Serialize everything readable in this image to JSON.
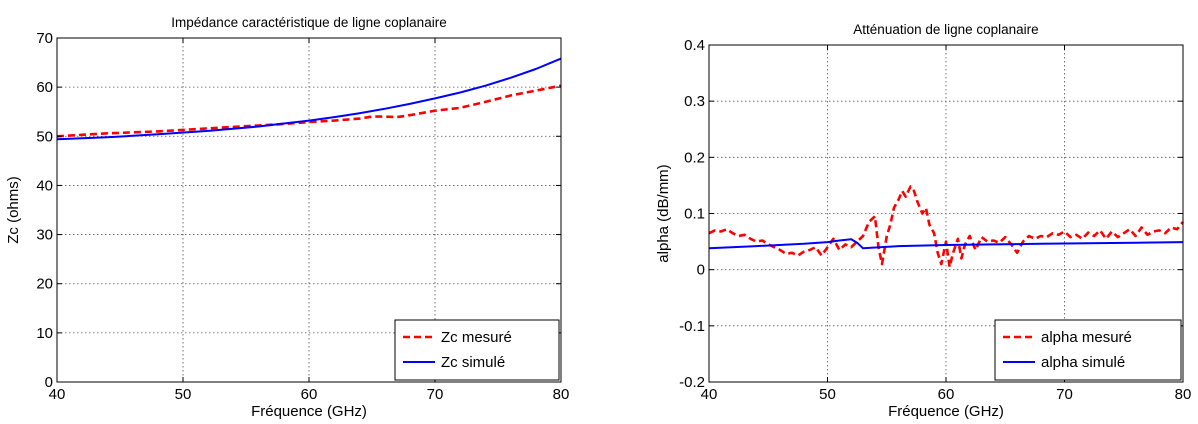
{
  "chart_data": [
    {
      "type": "line",
      "title": "Impédance caractéristique de ligne coplanaire",
      "xlabel": "Fréquence (GHz)",
      "ylabel": "Zc (ohms)",
      "xlim": [
        40,
        80
      ],
      "ylim": [
        0,
        70
      ],
      "xticks": [
        40,
        50,
        60,
        70,
        80
      ],
      "yticks": [
        0,
        10,
        20,
        30,
        40,
        50,
        60,
        70
      ],
      "grid": true,
      "legend_position": "bottom-right",
      "series": [
        {
          "name": "Zc mesuré",
          "color": "#ff0000",
          "style": "dashed",
          "x": [
            40,
            42,
            44,
            46,
            48,
            50,
            52,
            54,
            56,
            58,
            60,
            62,
            64,
            65,
            66,
            67,
            68,
            70,
            72,
            74,
            76,
            78,
            80
          ],
          "y": [
            50.0,
            50.3,
            50.6,
            50.8,
            51.0,
            51.3,
            51.6,
            51.9,
            52.2,
            52.5,
            52.9,
            53.2,
            53.6,
            54.0,
            54.0,
            53.9,
            54.3,
            55.2,
            55.8,
            57.0,
            58.3,
            59.3,
            60.3
          ]
        },
        {
          "name": "Zc simulé",
          "color": "#0000ff",
          "style": "solid",
          "x": [
            40,
            44,
            48,
            52,
            56,
            58,
            60,
            62,
            64,
            66,
            68,
            70,
            72,
            74,
            76,
            78,
            80
          ],
          "y": [
            49.4,
            49.8,
            50.4,
            51.1,
            52.0,
            52.6,
            53.2,
            53.9,
            54.7,
            55.6,
            56.6,
            57.7,
            58.9,
            60.3,
            61.9,
            63.7,
            65.8
          ]
        }
      ]
    },
    {
      "type": "line",
      "title": "Atténuation de ligne coplanaire",
      "xlabel": "Fréquence (GHz)",
      "ylabel": "alpha (dB/mm)",
      "xlim": [
        40,
        80
      ],
      "ylim": [
        -0.2,
        0.4
      ],
      "xticks": [
        40,
        50,
        60,
        70,
        80
      ],
      "yticks": [
        -0.2,
        -0.1,
        0,
        0.1,
        0.2,
        0.3,
        0.4
      ],
      "grid": true,
      "legend_position": "bottom-right",
      "series": [
        {
          "name": "alpha mesuré",
          "color": "#ff0000",
          "style": "dashed",
          "x": [
            40,
            40.5,
            41,
            41.5,
            42,
            42.5,
            43,
            43.5,
            44,
            44.5,
            45,
            45.5,
            46,
            46.5,
            47,
            47.5,
            48,
            48.5,
            49,
            49.5,
            50,
            50.5,
            51,
            51.5,
            52,
            52.5,
            53,
            53.5,
            54,
            54.3,
            54.6,
            55,
            55.3,
            55.6,
            56,
            56.3,
            56.6,
            57,
            57.3,
            57.6,
            58,
            58.3,
            58.6,
            59,
            59.3,
            59.6,
            60,
            60.3,
            60.6,
            61,
            61.3,
            61.6,
            62,
            62.5,
            63,
            63.5,
            64,
            64.5,
            65,
            65.5,
            66,
            66.5,
            67,
            67.5,
            68,
            68.5,
            69,
            69.5,
            70,
            70.5,
            71,
            71.5,
            72,
            72.5,
            73,
            73.5,
            74,
            74.5,
            75,
            75.5,
            76,
            76.5,
            77,
            77.5,
            78,
            78.5,
            79,
            79.5,
            80
          ],
          "y": [
            0.065,
            0.07,
            0.068,
            0.072,
            0.065,
            0.06,
            0.062,
            0.055,
            0.05,
            0.052,
            0.045,
            0.04,
            0.035,
            0.028,
            0.03,
            0.025,
            0.032,
            0.035,
            0.04,
            0.025,
            0.04,
            0.055,
            0.035,
            0.045,
            0.04,
            0.05,
            0.06,
            0.085,
            0.095,
            0.04,
            0.01,
            0.06,
            0.08,
            0.11,
            0.125,
            0.14,
            0.13,
            0.148,
            0.14,
            0.12,
            0.1,
            0.11,
            0.08,
            0.065,
            0.03,
            0.01,
            0.05,
            0.005,
            0.03,
            0.055,
            0.02,
            0.045,
            0.06,
            0.035,
            0.058,
            0.05,
            0.052,
            0.048,
            0.058,
            0.045,
            0.03,
            0.05,
            0.06,
            0.055,
            0.06,
            0.058,
            0.065,
            0.062,
            0.068,
            0.058,
            0.062,
            0.055,
            0.066,
            0.06,
            0.07,
            0.055,
            0.068,
            0.058,
            0.065,
            0.072,
            0.06,
            0.075,
            0.062,
            0.068,
            0.07,
            0.065,
            0.075,
            0.072,
            0.085
          ]
        },
        {
          "name": "alpha simulé",
          "color": "#0000ff",
          "style": "solid",
          "x": [
            40,
            44,
            48,
            50,
            51,
            52,
            52.5,
            53,
            56,
            60,
            64,
            68,
            72,
            76,
            80
          ],
          "y": [
            0.038,
            0.042,
            0.046,
            0.049,
            0.052,
            0.054,
            0.048,
            0.038,
            0.042,
            0.044,
            0.045,
            0.046,
            0.047,
            0.048,
            0.049
          ]
        }
      ]
    }
  ]
}
